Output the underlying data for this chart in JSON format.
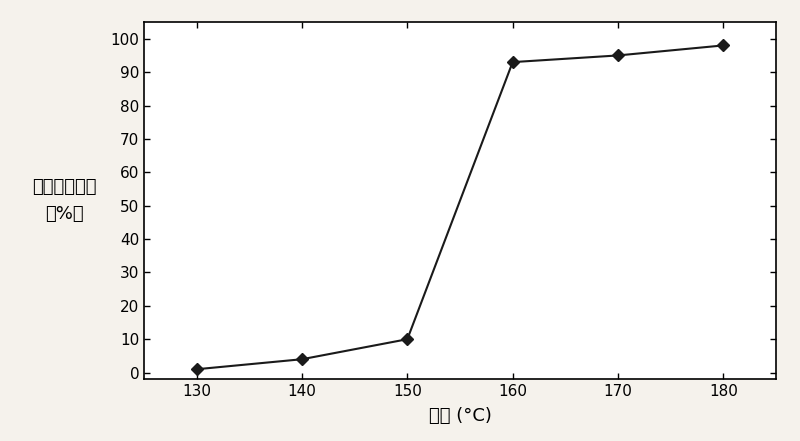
{
  "x": [
    130,
    140,
    150,
    160,
    170,
    180
  ],
  "y": [
    1,
    4,
    10,
    93,
    95,
    98
  ],
  "xlabel": "温度 (°C)",
  "ylabel_chars": [
    "二",
    "甲",
    "醚",
    "转",
    "化",
    "率",
    "",
    "（",
    "%",
    "）"
  ],
  "xlim": [
    125,
    185
  ],
  "ylim": [
    -2,
    105
  ],
  "xticks": [
    130,
    140,
    150,
    160,
    170,
    180
  ],
  "yticks": [
    0,
    10,
    20,
    30,
    40,
    50,
    60,
    70,
    80,
    90,
    100
  ],
  "line_color": "#1a1a1a",
  "marker": "D",
  "marker_size": 6,
  "marker_facecolor": "#1a1a1a",
  "line_width": 1.5,
  "background_color": "#f5f2ec",
  "plot_bg_color": "#ffffff",
  "tick_fontsize": 11,
  "label_fontsize": 13,
  "ylabel_fontsize": 13
}
